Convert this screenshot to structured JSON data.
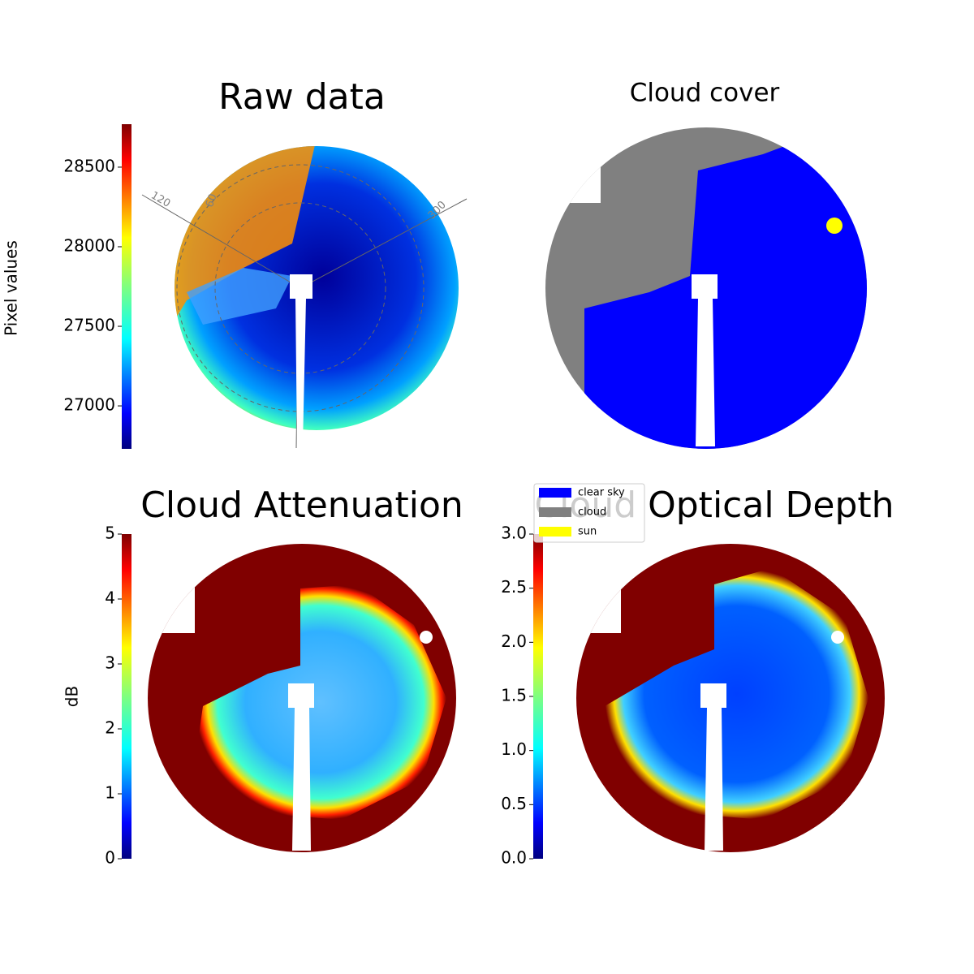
{
  "chart_data": [
    {
      "type": "image",
      "title": "Raw data",
      "colormap": "jet",
      "colorbar": {
        "label": "Pixel values",
        "lim": [
          26730,
          28770
        ],
        "ticks": [
          27000,
          27500,
          28000,
          28500
        ]
      },
      "annotations": [
        "120",
        "60",
        "300"
      ]
    },
    {
      "type": "categorical-image",
      "title": "Cloud cover",
      "legend": [
        {
          "name": "clear sky",
          "color": "#0000ff"
        },
        {
          "name": "cloud",
          "color": "#808080"
        },
        {
          "name": "sun",
          "color": "#ffff00"
        }
      ]
    },
    {
      "type": "image",
      "title": "Cloud Attenuation",
      "colormap": "jet",
      "colorbar": {
        "label": "dB",
        "lim": [
          0,
          5
        ],
        "ticks": [
          0,
          1,
          2,
          3,
          4,
          5
        ]
      }
    },
    {
      "type": "image",
      "title": "Cloud Optical Depth",
      "colormap": "jet",
      "colorbar": {
        "lim": [
          0,
          3
        ],
        "ticks": [
          {
            "value": 0,
            "label": "0.0"
          },
          {
            "value": 0.5,
            "label": "0.5"
          },
          {
            "value": 1,
            "label": "1.0"
          },
          {
            "value": 1.5,
            "label": "1.5"
          },
          {
            "value": 2,
            "label": "2.0"
          },
          {
            "value": 2.5,
            "label": "2.5"
          },
          {
            "value": 3,
            "label": "3.0"
          }
        ]
      }
    }
  ]
}
